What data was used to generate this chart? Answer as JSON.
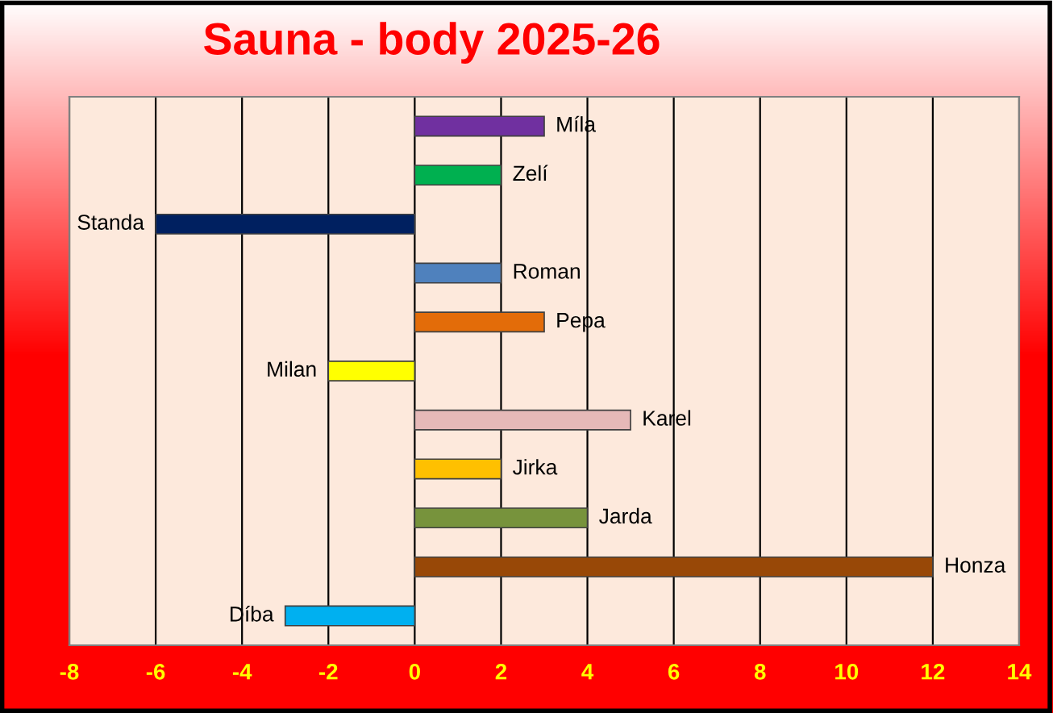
{
  "chart_data": {
    "type": "bar",
    "orientation": "horizontal",
    "title": "Sauna - body 2025-26",
    "categories": [
      "Míla",
      "Zelí",
      "Standa",
      "Roman",
      "Pepa",
      "Milan",
      "Karel",
      "Jirka",
      "Jarda",
      "Honza",
      "Díba"
    ],
    "values": [
      3,
      2,
      -6,
      2,
      3,
      -2,
      5,
      2,
      4,
      12,
      -3
    ],
    "colors": [
      "#7030a0",
      "#00b050",
      "#002060",
      "#4f81bd",
      "#e36c09",
      "#ffff00",
      "#e6b9b8",
      "#ffc000",
      "#77933c",
      "#984807",
      "#00b0f0"
    ],
    "xlim": [
      -8,
      14
    ],
    "xticks": [
      -8,
      -6,
      -4,
      -2,
      0,
      2,
      4,
      6,
      8,
      10,
      12,
      14
    ],
    "grid": "x",
    "legend": false,
    "tick_labels": "x"
  }
}
